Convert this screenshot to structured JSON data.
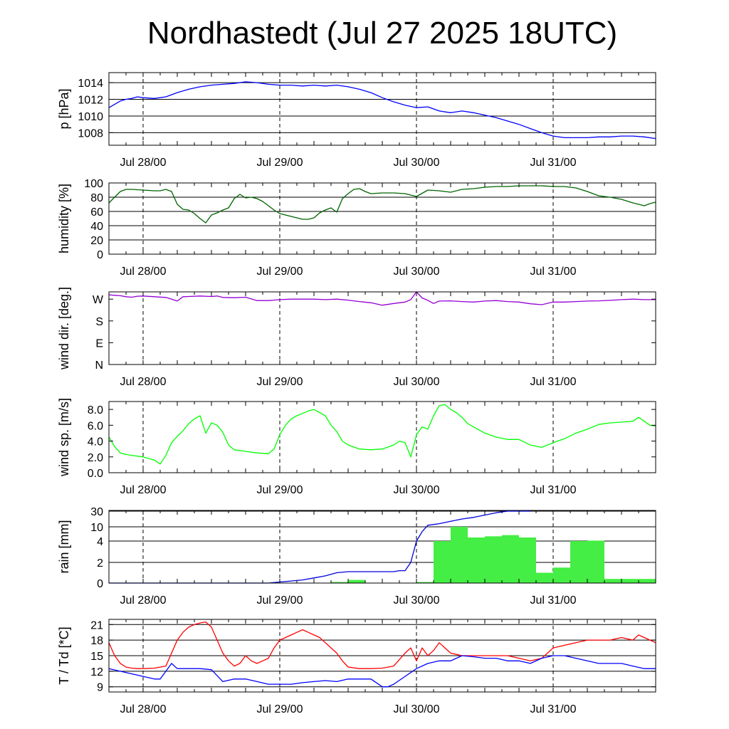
{
  "title": "Nordhastedt (Jul 27 2025 18UTC)",
  "colors": {
    "pressure": "#0000ff",
    "humidity": "#006400",
    "wind_dir": "#9400d3",
    "wind_speed": "#00ff00",
    "rain_bar": "#44ee44",
    "rain_line": "#0000dd",
    "temperature": "#ff0000",
    "dewpoint": "#0000ff"
  },
  "chart_data": [
    {
      "type": "line",
      "ylabel": "p [hPa]",
      "x_ticks": [
        "Jul 28/00",
        "Jul 29/00",
        "Jul 30/00",
        "Jul 31/00"
      ],
      "x_range_hours": [
        0,
        96
      ],
      "ylim": [
        1006.5,
        1015.2
      ],
      "y_ticks": [
        1008,
        1010,
        1012,
        1014
      ],
      "grid": "horizontal lines at y ticks, dashed verticals at midnight",
      "series": [
        {
          "color": "pressure",
          "x": [
            0,
            1,
            2,
            3,
            4,
            5,
            6,
            8,
            10,
            12,
            14,
            16,
            18,
            20,
            22,
            24,
            26,
            28,
            30,
            32,
            34,
            36,
            38,
            40,
            42,
            44,
            46,
            48,
            50,
            52,
            54,
            56,
            58,
            60,
            62,
            64,
            66,
            68,
            70,
            72,
            74,
            76,
            78,
            80,
            82,
            84,
            86,
            88,
            90,
            92,
            94,
            96
          ],
          "y": [
            1011.0,
            1011.4,
            1011.8,
            1012.0,
            1012.1,
            1012.3,
            1012.2,
            1012.1,
            1012.3,
            1012.8,
            1013.2,
            1013.5,
            1013.7,
            1013.8,
            1013.9,
            1014.1,
            1014.0,
            1013.8,
            1013.7,
            1013.7,
            1013.6,
            1013.7,
            1013.6,
            1013.7,
            1013.5,
            1013.2,
            1012.8,
            1012.2,
            1011.7,
            1011.3,
            1011.0,
            1011.1,
            1010.6,
            1010.4,
            1010.6,
            1010.4,
            1010.1,
            1009.8,
            1009.4,
            1009.0,
            1008.5,
            1008.0,
            1007.6,
            1007.4,
            1007.4,
            1007.4,
            1007.5,
            1007.5,
            1007.6,
            1007.6,
            1007.5,
            1007.3
          ]
        }
      ]
    },
    {
      "type": "line",
      "ylabel": "humidity [%]",
      "x_ticks": [
        "Jul 28/00",
        "Jul 29/00",
        "Jul 30/00",
        "Jul 31/00"
      ],
      "x_range_hours": [
        0,
        96
      ],
      "ylim": [
        0,
        100
      ],
      "y_ticks": [
        0,
        20,
        40,
        60,
        80,
        100
      ],
      "grid": "horizontal lines at y ticks, dashed verticals at midnight",
      "series": [
        {
          "color": "humidity",
          "x": [
            0,
            1,
            2,
            3,
            4,
            6,
            8,
            9,
            10,
            11,
            12,
            13,
            14,
            15,
            16,
            17,
            18,
            19,
            20,
            21,
            22,
            23,
            24,
            25,
            26,
            27,
            28,
            29,
            30,
            31,
            32,
            33,
            34,
            35,
            36,
            37,
            38,
            39,
            40,
            41,
            42,
            43,
            44,
            45,
            46,
            48,
            50,
            52,
            54,
            56,
            58,
            60,
            62,
            64,
            66,
            68,
            70,
            72,
            74,
            76,
            78,
            80,
            82,
            84,
            86,
            88,
            90,
            92,
            94,
            95,
            96
          ],
          "y": [
            72,
            80,
            88,
            91,
            91,
            90,
            89,
            89,
            91,
            88,
            70,
            63,
            62,
            57,
            50,
            44,
            55,
            58,
            62,
            65,
            78,
            84,
            79,
            80,
            78,
            74,
            68,
            62,
            57,
            55,
            53,
            51,
            49,
            49,
            51,
            58,
            62,
            65,
            59,
            78,
            85,
            91,
            92,
            88,
            85,
            86,
            86,
            85,
            81,
            90,
            89,
            87,
            91,
            92,
            94,
            95,
            95,
            96,
            96,
            96,
            95,
            95,
            93,
            88,
            82,
            80,
            77,
            72,
            68,
            71,
            73
          ]
        }
      ]
    },
    {
      "type": "line",
      "ylabel": "wind dir. [deg.]",
      "x_ticks": [
        "Jul 28/00",
        "Jul 29/00",
        "Jul 30/00",
        "Jul 31/00"
      ],
      "x_range_hours": [
        0,
        96
      ],
      "ylim": [
        0,
        300
      ],
      "y_ticks": [
        {
          "value": 0,
          "label": "N"
        },
        {
          "value": 90,
          "label": "E"
        },
        {
          "value": 180,
          "label": "S"
        },
        {
          "value": 270,
          "label": "W"
        }
      ],
      "grid": "dashed verticals at midnight",
      "series": [
        {
          "color": "wind_dir",
          "x": [
            0,
            1,
            2,
            3,
            4,
            5,
            6,
            8,
            10,
            11,
            12,
            13,
            14,
            16,
            18,
            19,
            20,
            22,
            24,
            25,
            26,
            28,
            30,
            32,
            34,
            36,
            38,
            40,
            42,
            44,
            46,
            48,
            50,
            52,
            53,
            54,
            55,
            56,
            57,
            58,
            60,
            62,
            64,
            66,
            68,
            70,
            72,
            74,
            76,
            78,
            80,
            82,
            84,
            86,
            88,
            90,
            92,
            94,
            96
          ],
          "y": [
            288,
            286,
            284,
            280,
            278,
            282,
            283,
            280,
            277,
            270,
            262,
            280,
            281,
            283,
            281,
            283,
            277,
            276,
            278,
            271,
            264,
            264,
            268,
            270,
            270,
            270,
            268,
            270,
            266,
            260,
            255,
            245,
            252,
            258,
            268,
            300,
            275,
            265,
            252,
            262,
            263,
            260,
            258,
            262,
            264,
            260,
            258,
            251,
            247,
            258,
            258,
            260,
            262,
            263,
            265,
            268,
            270,
            268,
            268
          ]
        }
      ]
    },
    {
      "type": "line",
      "ylabel": "wind sp. [m/s]",
      "x_ticks": [
        "Jul 28/00",
        "Jul 29/00",
        "Jul 30/00",
        "Jul 31/00"
      ],
      "x_range_hours": [
        0,
        96
      ],
      "ylim": [
        0,
        9
      ],
      "y_ticks": [
        0.0,
        2.0,
        4.0,
        6.0,
        8.0
      ],
      "grid": "dashed verticals at midnight",
      "series": [
        {
          "color": "wind_speed",
          "x": [
            0,
            1,
            2,
            3,
            4,
            6,
            8,
            9,
            10,
            11,
            12,
            13,
            14,
            15,
            16,
            17,
            18,
            19,
            20,
            21,
            22,
            24,
            26,
            28,
            29,
            30,
            31,
            32,
            33,
            34,
            35,
            36,
            37,
            38,
            39,
            40,
            41,
            42,
            44,
            46,
            48,
            50,
            51,
            52,
            53,
            54,
            55,
            56,
            57,
            58,
            59,
            60,
            61,
            62,
            63,
            64,
            66,
            68,
            70,
            72,
            74,
            76,
            78,
            80,
            82,
            84,
            86,
            88,
            90,
            92,
            93,
            94,
            95,
            96
          ],
          "y": [
            4.5,
            3.3,
            2.5,
            2.3,
            2.2,
            2.0,
            1.6,
            1.1,
            2.2,
            3.8,
            4.6,
            5.3,
            6.2,
            6.8,
            7.2,
            5.0,
            6.3,
            6.0,
            5.1,
            3.5,
            2.9,
            2.7,
            2.5,
            2.4,
            3.0,
            4.8,
            6.0,
            6.8,
            7.2,
            7.5,
            7.8,
            8.0,
            7.6,
            7.2,
            6.0,
            5.2,
            4.0,
            3.5,
            3.0,
            2.9,
            3.0,
            3.5,
            4.0,
            3.8,
            2.0,
            4.8,
            5.8,
            5.5,
            7.2,
            8.5,
            8.6,
            8.0,
            7.6,
            7.0,
            6.2,
            5.8,
            5.0,
            4.5,
            4.2,
            4.2,
            3.5,
            3.2,
            3.8,
            4.3,
            5.0,
            5.5,
            6.1,
            6.3,
            6.4,
            6.5,
            7.0,
            6.5,
            6.0,
            5.9
          ]
        }
      ]
    },
    {
      "type": "bar",
      "ylabel": "rain [mm]",
      "x_ticks": [
        "Jul 28/00",
        "Jul 29/00",
        "Jul 30/00",
        "Jul 31/00"
      ],
      "x_range_hours": [
        0,
        96
      ],
      "ylim": [
        0,
        30
      ],
      "y_scale": "nonlinear (ticks 0, 2, 4, 10, 30)",
      "y_ticks": [
        0,
        2,
        4,
        10,
        30
      ],
      "grid": "horizontal lines at y ticks, dashed verticals at midnight",
      "bars_hourly_start": [
        0,
        9,
        12,
        15,
        18,
        21,
        24,
        27,
        30,
        33,
        36,
        39,
        42,
        45,
        48,
        51,
        54,
        57,
        60,
        63,
        66,
        69,
        72,
        75,
        78,
        81,
        84,
        87,
        90,
        93
      ],
      "bars_mm": [
        0,
        0,
        0,
        0,
        0,
        0,
        0,
        0,
        0,
        0,
        0,
        0.1,
        0.3,
        0,
        0,
        0,
        0.1,
        4.0,
        10.0,
        5.5,
        6.0,
        6.5,
        5.5,
        1.0,
        1.5,
        4.0,
        4.2,
        0.4,
        0.4,
        0.4
      ],
      "series": [
        {
          "name": "accumulated",
          "color": "rain_line",
          "x": [
            0,
            20,
            28,
            30,
            32,
            34,
            36,
            38,
            40,
            42,
            44,
            46,
            48,
            49,
            50,
            51,
            52,
            53,
            54,
            55,
            56,
            58,
            60,
            62,
            64,
            66,
            68,
            70,
            72,
            74
          ],
          "y": [
            0,
            0,
            0,
            0.1,
            0.2,
            0.3,
            0.5,
            0.7,
            1.0,
            1.1,
            1.1,
            1.1,
            1.1,
            1.1,
            1.1,
            1.2,
            1.2,
            2.0,
            4.0,
            8.0,
            12.0,
            14.0,
            17.0,
            20.0,
            22.0,
            25.0,
            28.0,
            30.0,
            30.0,
            30.0
          ]
        }
      ]
    },
    {
      "type": "line",
      "ylabel": "T / Td [*C]",
      "x_ticks": [
        "Jul 28/00",
        "Jul 29/00",
        "Jul 30/00",
        "Jul 31/00"
      ],
      "x_range_hours": [
        0,
        96
      ],
      "ylim": [
        8,
        22
      ],
      "y_ticks": [
        9,
        12,
        15,
        18,
        21
      ],
      "grid": "horizontal lines at y ticks, dashed verticals at midnight",
      "series": [
        {
          "color": "temperature",
          "x": [
            0,
            1,
            2,
            3,
            4,
            5,
            6,
            8,
            10,
            11,
            12,
            13,
            14,
            15,
            16,
            17,
            18,
            19,
            20,
            21,
            22,
            23,
            24,
            25,
            26,
            27,
            28,
            29,
            30,
            31,
            32,
            33,
            34,
            35,
            36,
            37,
            38,
            39,
            40,
            41,
            42,
            44,
            46,
            48,
            50,
            52,
            53,
            54,
            55,
            56,
            57,
            58,
            59,
            60,
            62,
            64,
            66,
            68,
            70,
            72,
            74,
            76,
            78,
            80,
            82,
            84,
            86,
            88,
            90,
            92,
            93,
            94,
            96
          ],
          "y": [
            17.5,
            15.0,
            13.5,
            12.8,
            12.6,
            12.5,
            12.5,
            12.6,
            13.0,
            15.5,
            18.0,
            19.5,
            20.5,
            21.0,
            21.3,
            21.5,
            20.5,
            18.0,
            15.5,
            14.0,
            13.0,
            13.5,
            15.0,
            14.0,
            13.5,
            14.0,
            14.5,
            16.5,
            18.0,
            18.5,
            19.0,
            19.5,
            20.0,
            19.5,
            19.0,
            18.5,
            17.5,
            16.5,
            15.5,
            14.0,
            12.8,
            12.5,
            12.5,
            12.6,
            13.0,
            15.5,
            16.5,
            14.0,
            16.5,
            15.0,
            16.0,
            17.5,
            16.5,
            15.5,
            15.0,
            15.0,
            15.0,
            15.0,
            15.0,
            14.5,
            14.0,
            14.5,
            16.5,
            17.0,
            17.5,
            18.0,
            18.0,
            18.0,
            18.5,
            18.0,
            19.0,
            18.5,
            17.5
          ]
        },
        {
          "color": "dewpoint",
          "x": [
            0,
            2,
            4,
            6,
            8,
            9,
            10,
            11,
            12,
            14,
            16,
            18,
            20,
            22,
            24,
            26,
            28,
            30,
            32,
            34,
            36,
            38,
            40,
            42,
            44,
            46,
            48,
            49,
            50,
            52,
            54,
            56,
            58,
            60,
            62,
            64,
            66,
            68,
            70,
            72,
            74,
            76,
            78,
            80,
            82,
            84,
            86,
            88,
            90,
            92,
            94,
            96
          ],
          "y": [
            12.5,
            12.0,
            11.5,
            11.0,
            10.5,
            10.5,
            12.0,
            13.5,
            12.5,
            12.5,
            12.5,
            12.3,
            10.0,
            10.5,
            10.5,
            10.0,
            9.5,
            9.5,
            9.5,
            9.8,
            10.0,
            10.2,
            10.0,
            10.5,
            10.5,
            10.5,
            9.0,
            9.0,
            9.5,
            11.0,
            12.5,
            13.5,
            14.0,
            14.0,
            15.0,
            14.8,
            14.5,
            14.5,
            14.0,
            14.0,
            13.5,
            14.5,
            15.0,
            15.0,
            14.5,
            14.0,
            13.5,
            13.5,
            13.5,
            13.0,
            12.5,
            12.5
          ]
        }
      ]
    }
  ]
}
